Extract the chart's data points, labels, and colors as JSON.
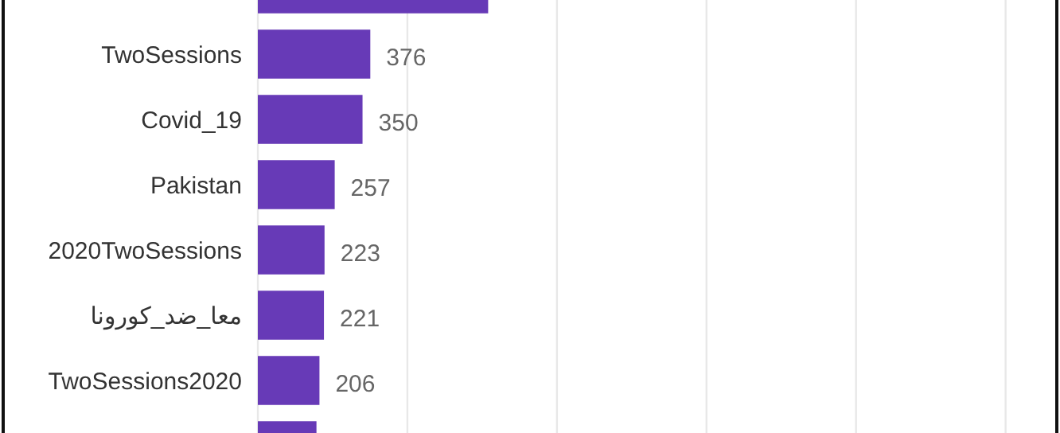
{
  "chart_data": {
    "type": "bar",
    "orientation": "horizontal",
    "categories": [
      null,
      "TwoSessions",
      "Covid_19",
      "Pakistan",
      "2020TwoSessions",
      "معا_ضد_كورونا",
      "TwoSessions2020",
      null
    ],
    "values": [
      770,
      376,
      350,
      257,
      223,
      221,
      206,
      196
    ],
    "value_labels": [
      null,
      "376",
      "350",
      "257",
      "223",
      "221",
      "206",
      null
    ],
    "color": "#673ab7",
    "xlim": [
      0,
      2650
    ],
    "xticks": [
      {
        "value": 0,
        "label": null
      },
      {
        "value": 500,
        "label": null
      },
      {
        "value": 1000,
        "label": null
      },
      {
        "value": 1500,
        "label": null
      },
      {
        "value": 2000,
        "label": null
      },
      {
        "value": 2500,
        "label": null
      }
    ],
    "grid": "x",
    "tick_labels": "y"
  }
}
